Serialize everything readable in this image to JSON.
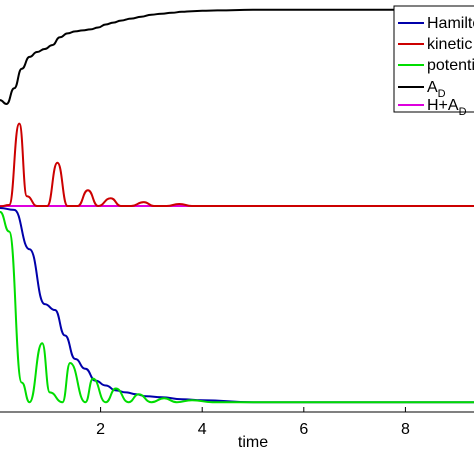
{
  "chart_data": {
    "type": "line",
    "xlabel": "time",
    "ylabel": "",
    "title": "",
    "xlim": [
      0.02,
      9.35
    ],
    "ylim": [
      -0.05,
      2.05
    ],
    "xticks": [
      2,
      4,
      6,
      8
    ],
    "xtick_labels": [
      "2",
      "4",
      "6",
      "8"
    ],
    "grid": false,
    "legend_position": "top-right",
    "series": [
      {
        "name": "Hamilto",
        "color": "#0000aa",
        "x": [
          0.02,
          0.3,
          0.6,
          0.9,
          1.1,
          1.3,
          1.5,
          1.7,
          1.9,
          2.1,
          2.3,
          2.5,
          2.7,
          2.9,
          3.2,
          3.6,
          4.0,
          5.0,
          6.0,
          7.0,
          8.0,
          9.35
        ],
        "y": [
          0.99,
          0.98,
          0.78,
          0.5,
          0.47,
          0.34,
          0.22,
          0.17,
          0.11,
          0.085,
          0.06,
          0.05,
          0.04,
          0.03,
          0.025,
          0.015,
          0.01,
          0.0,
          0.0,
          0.0,
          0.0,
          0.0
        ]
      },
      {
        "name": "kinetic",
        "color": "#cc0000",
        "x": [
          0.02,
          0.2,
          0.4,
          0.55,
          0.75,
          0.95,
          1.15,
          1.35,
          1.55,
          1.75,
          1.95,
          2.2,
          2.4,
          2.6,
          2.85,
          3.05,
          3.3,
          3.55,
          3.8,
          4.1,
          4.5,
          5.0,
          6.0,
          7.0,
          8.0,
          9.35
        ],
        "y": [
          0.998,
          1.005,
          1.42,
          1.05,
          1.0,
          1.0,
          1.22,
          1.0,
          1.0,
          1.08,
          1.0,
          1.04,
          1.0,
          1.0,
          1.02,
          1.0,
          1.0,
          1.01,
          1.0,
          1.0,
          1.0,
          1.0,
          1.0,
          1.0,
          1.0,
          1.0
        ]
      },
      {
        "name": "potenti",
        "color": "#00dd00",
        "x": [
          0.02,
          0.2,
          0.45,
          0.6,
          0.85,
          1.0,
          1.25,
          1.4,
          1.7,
          1.85,
          2.1,
          2.3,
          2.55,
          2.75,
          3.0,
          3.25,
          3.5,
          3.8,
          4.2,
          5.0,
          6.0,
          7.0,
          8.0,
          9.35
        ],
        "y": [
          0.97,
          0.87,
          0.1,
          0.0,
          0.3,
          0.05,
          0.0,
          0.2,
          0.0,
          0.12,
          0.0,
          0.07,
          0.0,
          0.04,
          0.0,
          0.02,
          0.0,
          0.01,
          0.0,
          0.0,
          0.0,
          0.0,
          0.0,
          0.0
        ]
      },
      {
        "name": "A_D",
        "color": "#000000",
        "x": [
          0.02,
          0.15,
          0.3,
          0.45,
          0.6,
          0.75,
          0.9,
          1.05,
          1.2,
          1.35,
          1.5,
          1.65,
          1.8,
          1.95,
          2.1,
          2.25,
          2.4,
          2.6,
          2.8,
          3.0,
          3.2,
          3.4,
          3.6,
          3.8,
          4.0,
          4.3,
          5.0,
          6.0,
          7.0,
          8.0,
          9.35
        ],
        "y": [
          1.54,
          1.52,
          1.6,
          1.7,
          1.76,
          1.785,
          1.8,
          1.82,
          1.86,
          1.88,
          1.89,
          1.895,
          1.9,
          1.91,
          1.925,
          1.935,
          1.945,
          1.955,
          1.965,
          1.975,
          1.98,
          1.985,
          1.99,
          1.993,
          1.995,
          1.997,
          2.0,
          2.0,
          2.0,
          2.0,
          2.0
        ]
      },
      {
        "name": "H+A_D",
        "color": "#dd00dd",
        "x": [
          0.02,
          9.35
        ],
        "y": [
          1.0,
          1.0
        ]
      }
    ]
  },
  "legend": {
    "items": [
      {
        "text": "Hamilto",
        "sub": "",
        "color": "#0000aa"
      },
      {
        "text": "kinetic",
        "sub": "",
        "color": "#cc0000"
      },
      {
        "text": "potenti",
        "sub": "",
        "color": "#00dd00"
      },
      {
        "text": "A",
        "sub": "D",
        "color": "#000000"
      },
      {
        "text": "H+A",
        "sub": "D",
        "color": "#dd00dd"
      }
    ]
  }
}
